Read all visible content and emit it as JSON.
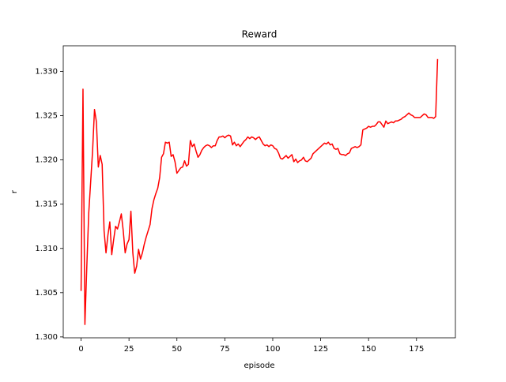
{
  "chart_data": {
    "type": "line",
    "title": "Reward",
    "x_label": "episode",
    "y_label": "r",
    "x": [
      0,
      1,
      2,
      3,
      4,
      5,
      6,
      7,
      8,
      9,
      10,
      11,
      12,
      13,
      14,
      15,
      16,
      17,
      18,
      19,
      20,
      21,
      22,
      23,
      24,
      25,
      26,
      27,
      28,
      29,
      30,
      31,
      32,
      33,
      34,
      35,
      36,
      37,
      38,
      39,
      40,
      41,
      42,
      43,
      44,
      45,
      46,
      47,
      48,
      49,
      50,
      51,
      52,
      53,
      54,
      55,
      56,
      57,
      58,
      59,
      60,
      61,
      62,
      63,
      64,
      65,
      66,
      67,
      68,
      69,
      70,
      71,
      72,
      73,
      74,
      75,
      76,
      77,
      78,
      79,
      80,
      81,
      82,
      83,
      84,
      85,
      86,
      87,
      88,
      89,
      90,
      91,
      92,
      93,
      94,
      95,
      96,
      97,
      98,
      99,
      100,
      101,
      102,
      103,
      104,
      105,
      106,
      107,
      108,
      109,
      110,
      111,
      112,
      113,
      114,
      115,
      116,
      117,
      118,
      119,
      120,
      121,
      122,
      123,
      124,
      125,
      126,
      127,
      128,
      129,
      130,
      131,
      132,
      133,
      134,
      135,
      136,
      137,
      138,
      139,
      140,
      141,
      142,
      143,
      144,
      145,
      146,
      147,
      148,
      149,
      150,
      151,
      152,
      153,
      154,
      155,
      156,
      157,
      158,
      159,
      160,
      161,
      162,
      163,
      164,
      165,
      166,
      167,
      168,
      169,
      170,
      171,
      172,
      173,
      174,
      175,
      176,
      177,
      178,
      179,
      180,
      181,
      182,
      183,
      184,
      185,
      186
    ],
    "series": [
      {
        "name": "reward",
        "color": "#ff0000",
        "values": [
          1.3052,
          1.328,
          1.3014,
          1.308,
          1.314,
          1.3175,
          1.321,
          1.3257,
          1.3243,
          1.3192,
          1.3205,
          1.3195,
          1.312,
          1.3095,
          1.3115,
          1.313,
          1.3093,
          1.311,
          1.3125,
          1.3122,
          1.313,
          1.3139,
          1.312,
          1.3095,
          1.3105,
          1.311,
          1.3142,
          1.3095,
          1.3072,
          1.308,
          1.3099,
          1.3088,
          1.3095,
          1.3105,
          1.3113,
          1.312,
          1.3127,
          1.3145,
          1.3155,
          1.3162,
          1.3168,
          1.318,
          1.3203,
          1.3207,
          1.322,
          1.3219,
          1.322,
          1.3204,
          1.3206,
          1.3198,
          1.3185,
          1.3188,
          1.3191,
          1.3192,
          1.3199,
          1.3193,
          1.3195,
          1.3222,
          1.3215,
          1.3218,
          1.321,
          1.3203,
          1.3206,
          1.3211,
          1.3214,
          1.3216,
          1.3217,
          1.3216,
          1.3214,
          1.3216,
          1.3216,
          1.3222,
          1.3226,
          1.3226,
          1.3227,
          1.3225,
          1.3227,
          1.3228,
          1.3227,
          1.3217,
          1.322,
          1.3216,
          1.3218,
          1.3215,
          1.3218,
          1.3221,
          1.3223,
          1.3226,
          1.3224,
          1.3226,
          1.3225,
          1.3223,
          1.3225,
          1.3226,
          1.3222,
          1.3218,
          1.3216,
          1.3217,
          1.3215,
          1.3217,
          1.3216,
          1.3213,
          1.3212,
          1.3208,
          1.3202,
          1.3201,
          1.3203,
          1.3205,
          1.3202,
          1.3204,
          1.3206,
          1.3198,
          1.3201,
          1.3197,
          1.3199,
          1.32,
          1.3203,
          1.3199,
          1.3198,
          1.32,
          1.3202,
          1.3207,
          1.3209,
          1.3211,
          1.3213,
          1.3215,
          1.3217,
          1.3219,
          1.3218,
          1.322,
          1.3217,
          1.3218,
          1.3213,
          1.3212,
          1.3213,
          1.3207,
          1.3206,
          1.3206,
          1.3205,
          1.3207,
          1.3208,
          1.3213,
          1.3214,
          1.3215,
          1.3214,
          1.3215,
          1.3217,
          1.3234,
          1.3235,
          1.3236,
          1.3238,
          1.3237,
          1.3238,
          1.3238,
          1.324,
          1.3243,
          1.3243,
          1.324,
          1.3237,
          1.3244,
          1.3241,
          1.3242,
          1.3243,
          1.3242,
          1.3244,
          1.3244,
          1.3245,
          1.3246,
          1.3248,
          1.3249,
          1.3251,
          1.3253,
          1.3251,
          1.325,
          1.3248,
          1.3248,
          1.3248,
          1.3248,
          1.325,
          1.3252,
          1.3251,
          1.3248,
          1.3248,
          1.3248,
          1.3247,
          1.3249,
          1.3314
        ]
      }
    ],
    "xlim": [
      -9.3,
      195.3
    ],
    "ylim": [
      1.2999,
      1.3329
    ],
    "xticks": [
      0,
      25,
      50,
      75,
      100,
      125,
      150,
      175
    ],
    "yticks": [
      {
        "value": 1.3,
        "label": "1.300"
      },
      1.305,
      {
        "value": 1.31,
        "label": "1.310"
      },
      1.315,
      {
        "value": 1.32,
        "label": "1.320"
      },
      1.325,
      {
        "value": 1.33,
        "label": "1.330"
      }
    ],
    "grid": false
  }
}
